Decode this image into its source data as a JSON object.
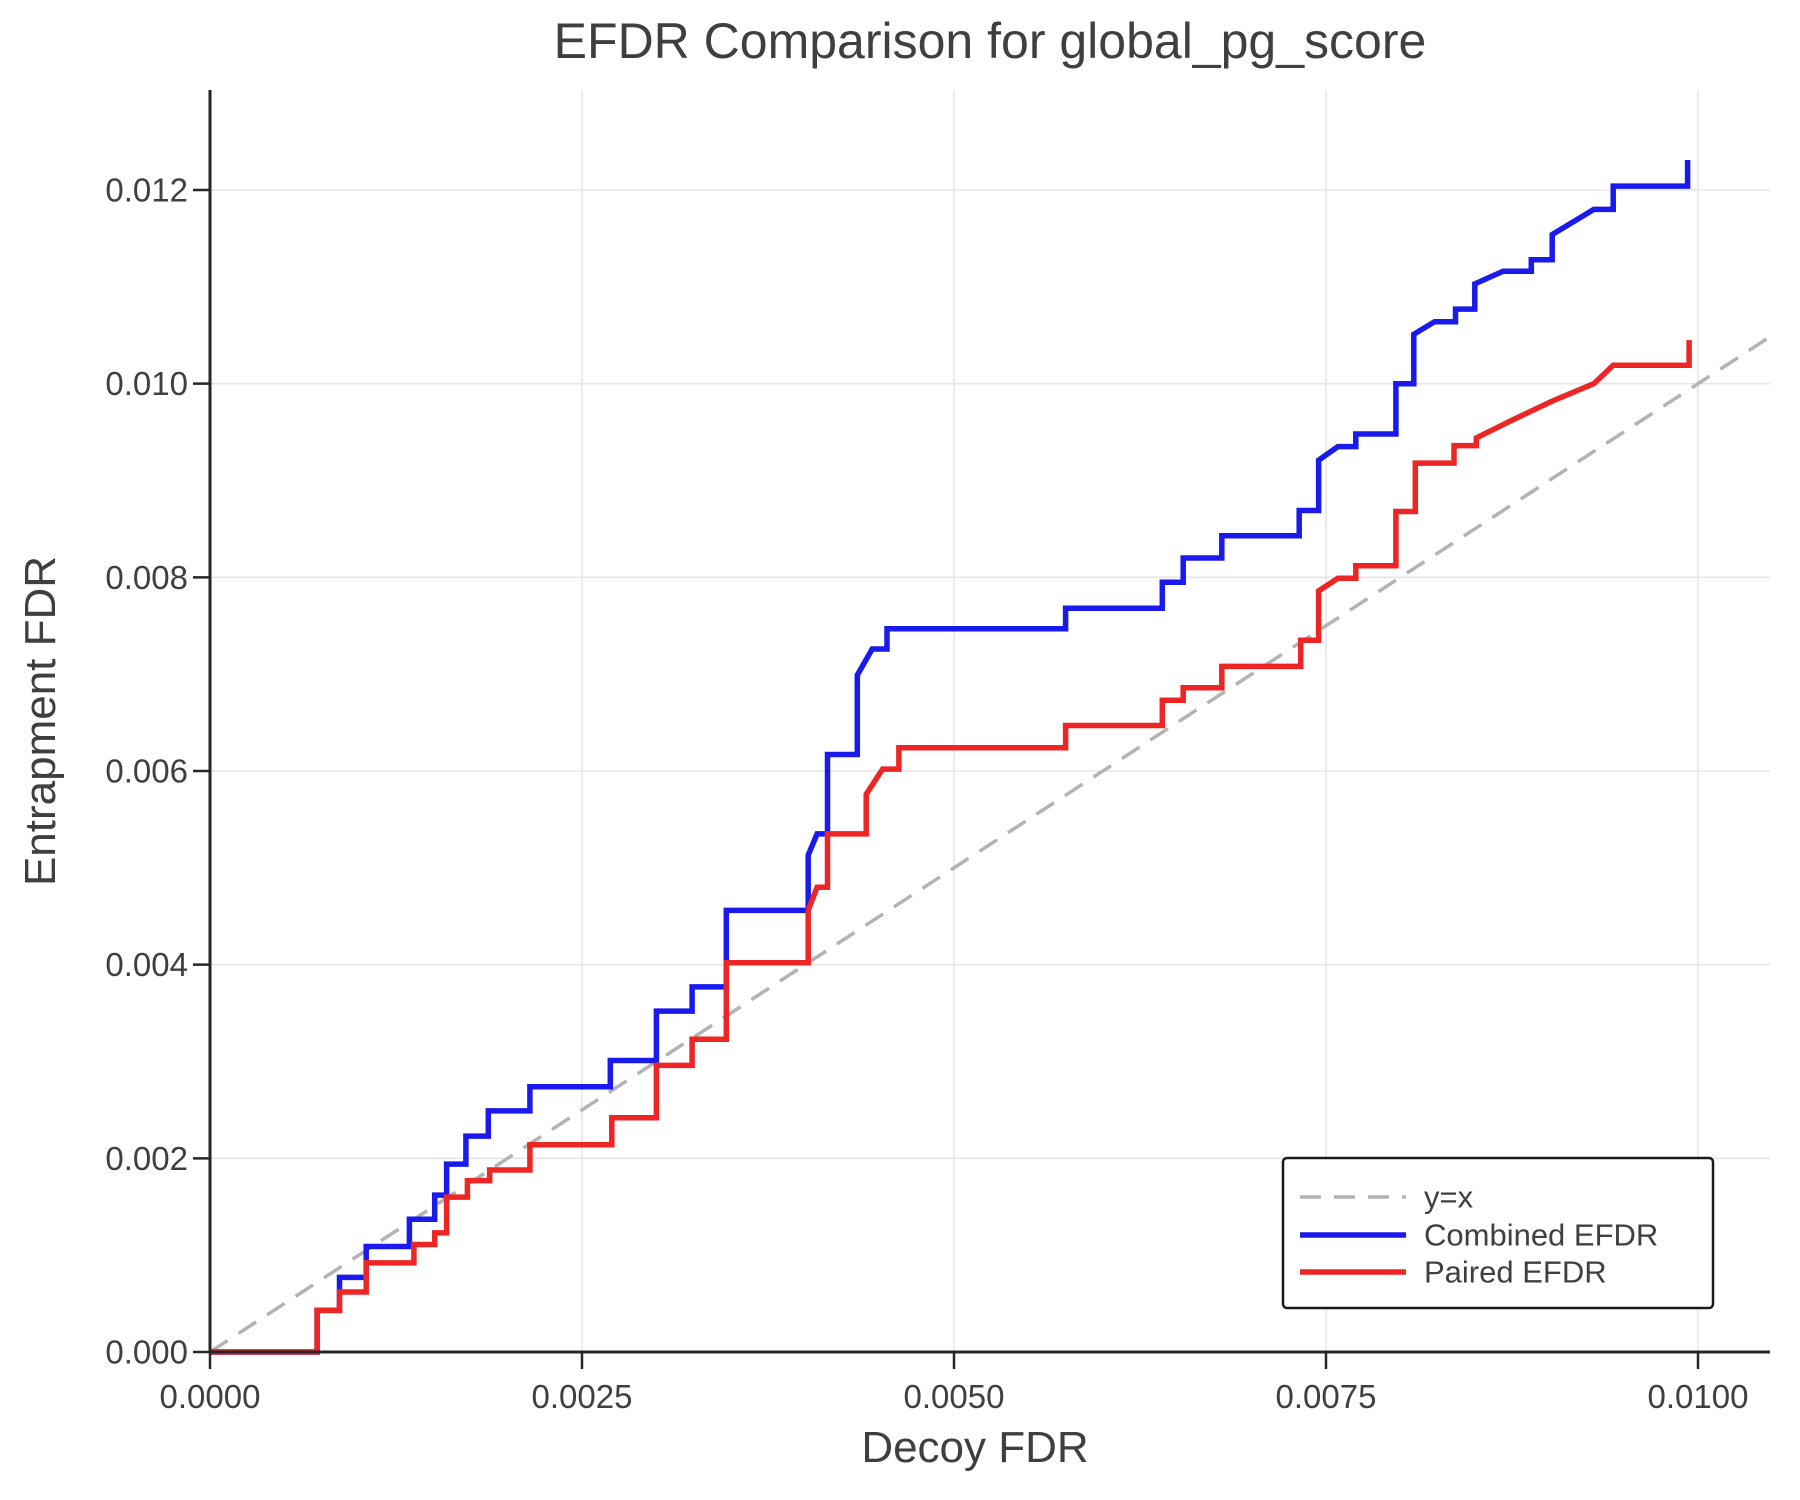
{
  "title": "EFDR Comparison for global_pg_score",
  "axes": {
    "x_label": "Decoy FDR",
    "y_label": "Entrapment FDR"
  },
  "legend": {
    "position": "lower right",
    "items": [
      {
        "label": "y=x",
        "style": "dashed",
        "color": "#b3b3b3"
      },
      {
        "label": "Combined EFDR",
        "style": "solid",
        "color": "#1a1aed"
      },
      {
        "label": "Paired EFDR",
        "style": "solid",
        "color": "#ee2525"
      }
    ]
  },
  "colors": {
    "background": "#ffffff",
    "grid": "#e6e6e6",
    "spine": "#262626",
    "text": "#3f3f3f",
    "diagonal": "#b3b3b3",
    "combined": "#1a1aed",
    "paired": "#ee2525"
  },
  "chart_data": {
    "type": "line",
    "title": "EFDR Comparison for global_pg_score",
    "xlabel": "Decoy FDR",
    "ylabel": "Entrapment FDR",
    "xlim": [
      0,
      0.010484
    ],
    "ylim": [
      0,
      0.013034
    ],
    "grid": true,
    "x_ticks": {
      "values": [
        0.0,
        0.0025,
        0.005,
        0.0075,
        0.01
      ],
      "labels": [
        "0.0000",
        "0.0025",
        "0.0050",
        "0.0075",
        "0.0100"
      ]
    },
    "y_ticks": {
      "values": [
        0.0,
        0.002,
        0.004,
        0.006,
        0.008,
        0.01,
        0.012
      ],
      "labels": [
        "0.000",
        "0.002",
        "0.004",
        "0.006",
        "0.008",
        "0.010",
        "0.012"
      ]
    },
    "diagonal": {
      "name": "y=x",
      "from": [
        0,
        0
      ],
      "to": [
        0.010484,
        0.010484
      ]
    },
    "series": [
      {
        "name": "Combined EFDR",
        "color": "#1a1aed",
        "step": "post",
        "points": [
          [
            0.0,
            0.0
          ],
          [
            0.00072,
            0.00043
          ],
          [
            0.00087,
            0.00077
          ],
          [
            0.00105,
            0.00109
          ],
          [
            0.00134,
            0.00137
          ],
          [
            0.00151,
            0.00162
          ],
          [
            0.00159,
            0.00194
          ],
          [
            0.00172,
            0.00223
          ],
          [
            0.00187,
            0.00249
          ],
          [
            0.00215,
            0.00274
          ],
          [
            0.00269,
            0.00301
          ],
          [
            0.003,
            0.00352
          ],
          [
            0.00324,
            0.00377
          ],
          [
            0.00347,
            0.00456
          ],
          [
            0.00402,
            0.00513
          ],
          [
            0.00408,
            0.00535,
            1
          ],
          [
            0.00415,
            0.00617
          ],
          [
            0.00435,
            0.00699
          ],
          [
            0.00445,
            0.00726,
            1
          ],
          [
            0.00455,
            0.00747
          ],
          [
            0.00575,
            0.00768
          ],
          [
            0.0064,
            0.00795
          ],
          [
            0.00654,
            0.0082
          ],
          [
            0.0068,
            0.00843
          ],
          [
            0.00732,
            0.00869
          ],
          [
            0.00745,
            0.00921
          ],
          [
            0.00758,
            0.00935,
            1
          ],
          [
            0.0077,
            0.00948
          ],
          [
            0.00797,
            0.01
          ],
          [
            0.00809,
            0.01051
          ],
          [
            0.00823,
            0.01064,
            1
          ],
          [
            0.00837,
            0.01077
          ],
          [
            0.0085,
            0.01103
          ],
          [
            0.00869,
            0.01116,
            1
          ],
          [
            0.00888,
            0.01128
          ],
          [
            0.00902,
            0.01154
          ],
          [
            0.0093,
            0.0118,
            1
          ],
          [
            0.00943,
            0.01204
          ],
          [
            0.00993,
            0.01231
          ]
        ]
      },
      {
        "name": "Paired EFDR",
        "color": "#ee2525",
        "step": "post",
        "points": [
          [
            0.0,
            0.0
          ],
          [
            0.00072,
            0.00043
          ],
          [
            0.00087,
            0.00062
          ],
          [
            0.00105,
            0.00092
          ],
          [
            0.00137,
            0.00111
          ],
          [
            0.00151,
            0.00123
          ],
          [
            0.00159,
            0.0016
          ],
          [
            0.00173,
            0.00177
          ],
          [
            0.00188,
            0.00188
          ],
          [
            0.00215,
            0.00214
          ],
          [
            0.0027,
            0.00242
          ],
          [
            0.003,
            0.00296
          ],
          [
            0.00324,
            0.00323
          ],
          [
            0.00347,
            0.00402
          ],
          [
            0.00402,
            0.00456
          ],
          [
            0.00408,
            0.0048,
            1
          ],
          [
            0.00415,
            0.00535
          ],
          [
            0.00441,
            0.00576
          ],
          [
            0.00452,
            0.00602,
            1
          ],
          [
            0.00463,
            0.00624
          ],
          [
            0.00575,
            0.00647
          ],
          [
            0.0064,
            0.00673
          ],
          [
            0.00654,
            0.00686
          ],
          [
            0.0068,
            0.00708
          ],
          [
            0.00733,
            0.00735
          ],
          [
            0.00745,
            0.00786
          ],
          [
            0.00758,
            0.00799,
            1
          ],
          [
            0.0077,
            0.00812
          ],
          [
            0.00797,
            0.00868
          ],
          [
            0.0081,
            0.00918
          ],
          [
            0.00836,
            0.00936
          ],
          [
            0.00851,
            0.00944
          ],
          [
            0.00876,
            0.00963,
            1
          ],
          [
            0.00902,
            0.00982,
            1
          ],
          [
            0.0093,
            0.01,
            1
          ],
          [
            0.00943,
            0.01019,
            1
          ],
          [
            0.00994,
            0.01045
          ]
        ]
      }
    ]
  }
}
